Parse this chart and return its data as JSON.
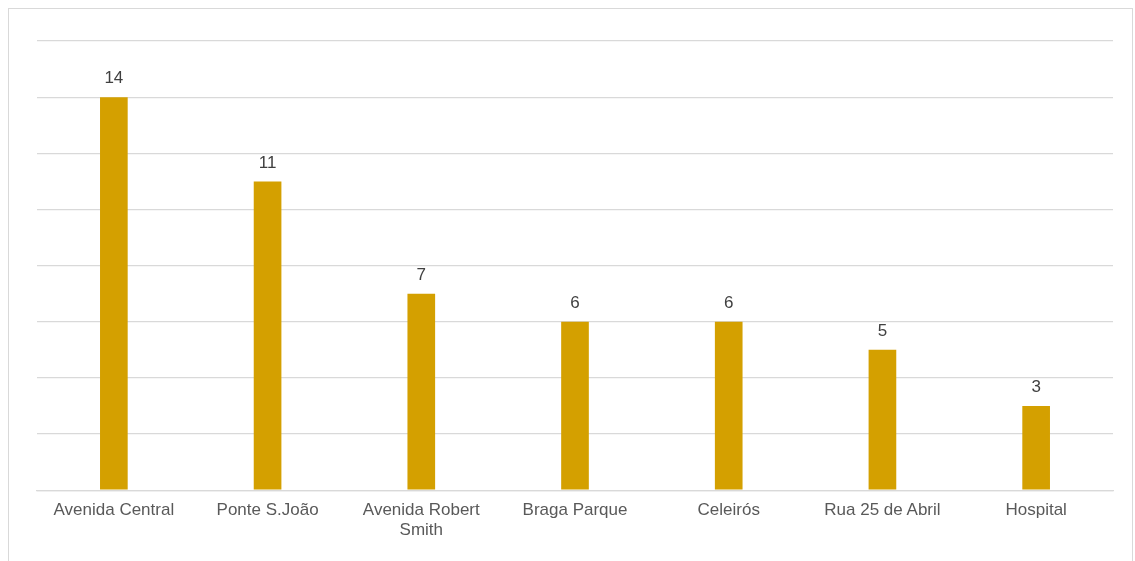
{
  "chart_data": {
    "type": "bar",
    "categories": [
      "Avenida Central",
      "Ponte S.João",
      "Avenida Robert Smith",
      "Braga Parque",
      "Celeirós",
      "Rua 25 de Abril",
      "Hospital"
    ],
    "values": [
      14,
      11,
      7,
      6,
      6,
      5,
      3
    ],
    "color": "#d4a000",
    "ylim": [
      0,
      16
    ],
    "yticks": [
      0,
      2,
      4,
      6,
      8,
      10,
      12,
      14,
      16
    ],
    "grid": "y",
    "tick_labels": "x",
    "data_labels": true,
    "legend": false
  }
}
